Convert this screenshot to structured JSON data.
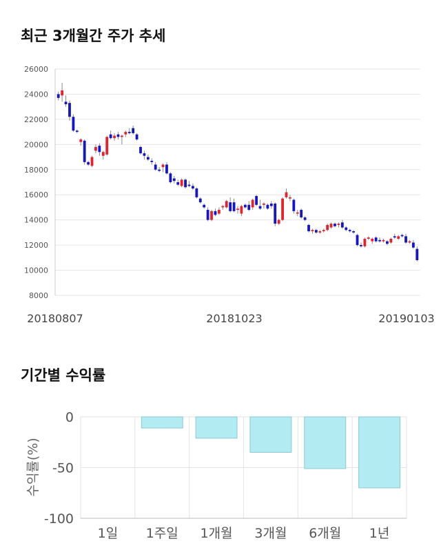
{
  "chart_data": [
    {
      "type": "candlestick",
      "title": "최근 3개월간 주가 추세",
      "xlabel": "",
      "ylabel": "",
      "ylim": [
        8000,
        26000
      ],
      "y_ticks": [
        8000,
        10000,
        12000,
        14000,
        16000,
        18000,
        20000,
        22000,
        24000,
        26000
      ],
      "x_tick_labels": [
        "20180807",
        "20181023",
        "20190103"
      ],
      "grid": true,
      "colors": {
        "up": "#e8202a",
        "down": "#1414c8",
        "wick": "#888888"
      },
      "candles": [
        [
          24000,
          24200,
          23500,
          23700
        ],
        [
          23900,
          24900,
          23400,
          24300
        ],
        [
          23400,
          23900,
          23000,
          23200
        ],
        [
          23300,
          23500,
          21900,
          22200
        ],
        [
          22200,
          22400,
          21000,
          21100
        ],
        [
          21100,
          21200,
          20900,
          21000
        ],
        [
          20200,
          20500,
          19900,
          20400
        ],
        [
          20300,
          20400,
          18400,
          18600
        ],
        [
          18600,
          18700,
          18300,
          18400
        ],
        [
          18300,
          19100,
          18200,
          19000
        ],
        [
          19500,
          20000,
          19300,
          19800
        ],
        [
          19900,
          20100,
          19100,
          19400
        ],
        [
          19100,
          19500,
          18800,
          19400
        ],
        [
          19200,
          20700,
          19100,
          20600
        ],
        [
          20800,
          21100,
          20400,
          20500
        ],
        [
          20500,
          20900,
          20300,
          20700
        ],
        [
          20800,
          21000,
          20400,
          20600
        ],
        [
          20600,
          20800,
          20000,
          20700
        ],
        [
          20800,
          21100,
          20600,
          21000
        ],
        [
          21000,
          21300,
          20800,
          20900
        ],
        [
          21300,
          21500,
          20800,
          20900
        ],
        [
          20800,
          20900,
          20300,
          20400
        ],
        [
          19800,
          19900,
          19200,
          19300
        ],
        [
          19300,
          19500,
          18800,
          19100
        ],
        [
          19000,
          19200,
          18700,
          18800
        ],
        [
          18700,
          18900,
          18400,
          18600
        ],
        [
          18400,
          18600,
          17900,
          18000
        ],
        [
          18000,
          18200,
          17800,
          17900
        ],
        [
          18200,
          18500,
          17800,
          18400
        ],
        [
          18400,
          18600,
          17600,
          17700
        ],
        [
          17700,
          17800,
          16900,
          17000
        ],
        [
          17300,
          17500,
          16900,
          17100
        ],
        [
          17000,
          17200,
          16700,
          16800
        ],
        [
          16700,
          17300,
          16600,
          17200
        ],
        [
          17200,
          17300,
          16500,
          16600
        ],
        [
          16800,
          17100,
          16600,
          16700
        ],
        [
          16700,
          16900,
          16400,
          16500
        ],
        [
          16500,
          16600,
          15700,
          15800
        ],
        [
          15700,
          15800,
          15300,
          15400
        ],
        [
          15200,
          15300,
          14900,
          15000
        ],
        [
          14800,
          15000,
          13900,
          14000
        ],
        [
          14000,
          14800,
          13900,
          14700
        ],
        [
          14700,
          14900,
          14300,
          14400
        ],
        [
          14500,
          15000,
          14400,
          14800
        ],
        [
          15000,
          15200,
          14800,
          15100
        ],
        [
          15000,
          15600,
          14900,
          15500
        ],
        [
          15400,
          15800,
          14600,
          14700
        ],
        [
          15400,
          15700,
          14600,
          14700
        ],
        [
          14800,
          15100,
          14500,
          14900
        ],
        [
          14500,
          15200,
          14300,
          15100
        ],
        [
          15200,
          15300,
          14900,
          15000
        ],
        [
          15200,
          15500,
          14700,
          14800
        ],
        [
          15000,
          15700,
          14800,
          15600
        ],
        [
          15900,
          16000,
          15100,
          15200
        ],
        [
          15100,
          15600,
          14800,
          14900
        ],
        [
          15200,
          15400,
          14900,
          15300
        ],
        [
          15200,
          15300,
          14800,
          14900
        ],
        [
          15300,
          15500,
          14900,
          15100
        ],
        [
          15300,
          15400,
          13500,
          13700
        ],
        [
          13700,
          14100,
          13600,
          14000
        ],
        [
          14000,
          15800,
          13900,
          15700
        ],
        [
          15800,
          16500,
          15700,
          16200
        ],
        [
          15700,
          16000,
          15500,
          15800
        ],
        [
          15600,
          15700,
          14500,
          14700
        ],
        [
          14500,
          14800,
          14300,
          14600
        ],
        [
          14800,
          14900,
          14100,
          14200
        ],
        [
          14200,
          14300,
          13900,
          14000
        ],
        [
          13600,
          13700,
          13000,
          13100
        ],
        [
          13100,
          13300,
          12900,
          13200
        ],
        [
          13200,
          13300,
          12900,
          13000
        ],
        [
          13000,
          13200,
          12900,
          13100
        ],
        [
          13100,
          13300,
          13000,
          13200
        ],
        [
          13200,
          13700,
          13100,
          13600
        ],
        [
          13400,
          13800,
          13300,
          13700
        ],
        [
          13700,
          13800,
          13400,
          13500
        ],
        [
          13600,
          13800,
          13400,
          13700
        ],
        [
          13800,
          14000,
          13300,
          13400
        ],
        [
          13400,
          13500,
          13100,
          13200
        ],
        [
          13200,
          13300,
          13000,
          13100
        ],
        [
          13100,
          13200,
          12900,
          13000
        ],
        [
          12800,
          12900,
          11900,
          12000
        ],
        [
          12000,
          12200,
          11800,
          11900
        ],
        [
          11900,
          12600,
          11800,
          12500
        ],
        [
          12500,
          12700,
          12400,
          12600
        ],
        [
          12300,
          12600,
          12100,
          12500
        ],
        [
          12600,
          12700,
          12200,
          12300
        ],
        [
          12400,
          12600,
          12200,
          12300
        ],
        [
          12300,
          12500,
          12200,
          12400
        ],
        [
          12300,
          12400,
          12000,
          12100
        ],
        [
          12200,
          12600,
          12100,
          12500
        ],
        [
          12700,
          12900,
          12500,
          12600
        ],
        [
          12500,
          12800,
          12400,
          12700
        ],
        [
          12800,
          12900,
          12600,
          12700
        ],
        [
          12700,
          12900,
          12100,
          12200
        ],
        [
          12200,
          12400,
          12100,
          12300
        ],
        [
          12200,
          12400,
          11700,
          11800
        ],
        [
          11700,
          11900,
          10700,
          10800
        ]
      ]
    },
    {
      "type": "bar",
      "title": "기간별 수익률",
      "xlabel": "",
      "ylabel": "수익률(%)",
      "ylim": [
        -100,
        0
      ],
      "y_ticks": [
        0,
        -50,
        -100
      ],
      "categories": [
        "1일",
        "1주일",
        "1개월",
        "3개월",
        "6개월",
        "1년"
      ],
      "values": [
        0,
        -11,
        -21,
        -35,
        -51,
        -70
      ],
      "grid": true,
      "colors": {
        "fill": "#b2ebf2",
        "stroke": "#8cc8d2"
      }
    }
  ]
}
